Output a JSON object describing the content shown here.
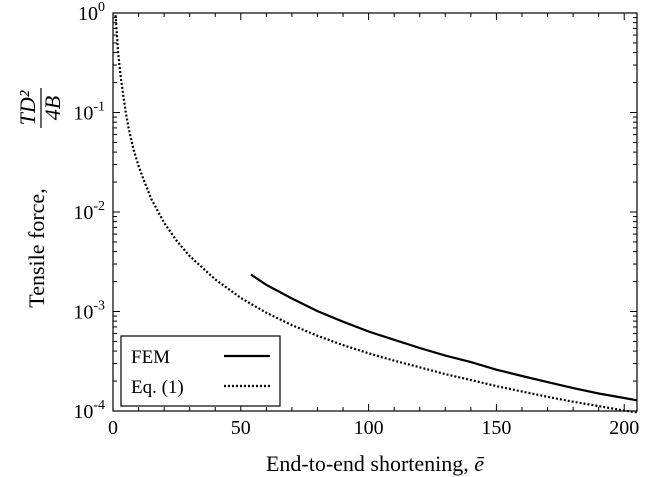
{
  "chart_data": {
    "type": "line",
    "xlabel": "End-to-end shortening, ",
    "xlabel_symbol": "ē",
    "ylabel": "Tensile force, ",
    "ylabel_fraction": {
      "numerator": "TD²",
      "denominator": "4B"
    },
    "xlim": [
      0,
      205
    ],
    "ylim": [
      0.0001,
      1
    ],
    "yscale": "log",
    "x_ticks": [
      0,
      50,
      100,
      150,
      200
    ],
    "y_ticks": [
      {
        "value": 1,
        "base": "10",
        "exp": "0"
      },
      {
        "value": 0.1,
        "base": "10",
        "exp": "-1"
      },
      {
        "value": 0.01,
        "base": "10",
        "exp": "-2"
      },
      {
        "value": 0.001,
        "base": "10",
        "exp": "-3"
      },
      {
        "value": 0.0001,
        "base": "10",
        "exp": "-4"
      }
    ],
    "grid": false,
    "legend_position": "bottom-left",
    "series": [
      {
        "name": "FEM",
        "style": "solid",
        "color": "#000000",
        "x": [
          54,
          60,
          70,
          80,
          90,
          100,
          110,
          120,
          130,
          140,
          150,
          160,
          170,
          180,
          190,
          200,
          205
        ],
        "y": [
          0.00235,
          0.00185,
          0.00135,
          0.00101,
          0.00079,
          0.00063,
          0.00052,
          0.00043,
          0.00036,
          0.00031,
          0.00026,
          0.000225,
          0.000195,
          0.00017,
          0.00015,
          0.000135,
          0.000128
        ]
      },
      {
        "name": "Eq. (1)",
        "style": "dotted",
        "color": "#000000",
        "x": [
          1,
          2,
          3,
          4,
          5,
          6,
          8,
          10,
          12,
          15,
          20,
          25,
          30,
          40,
          50,
          60,
          70,
          80,
          90,
          100,
          110,
          120,
          130,
          140,
          150,
          160,
          170,
          180,
          190,
          200,
          205
        ],
        "y": [
          0.95,
          0.4,
          0.23,
          0.15,
          0.1,
          0.072,
          0.043,
          0.029,
          0.021,
          0.0135,
          0.0078,
          0.0051,
          0.0036,
          0.0021,
          0.00137,
          0.00097,
          0.00073,
          0.00057,
          0.00046,
          0.00038,
          0.00032,
          0.000275,
          0.000235,
          0.000205,
          0.000178,
          0.000157,
          0.000139,
          0.000124,
          0.000112,
          0.000101,
          9.7e-05
        ]
      }
    ]
  }
}
